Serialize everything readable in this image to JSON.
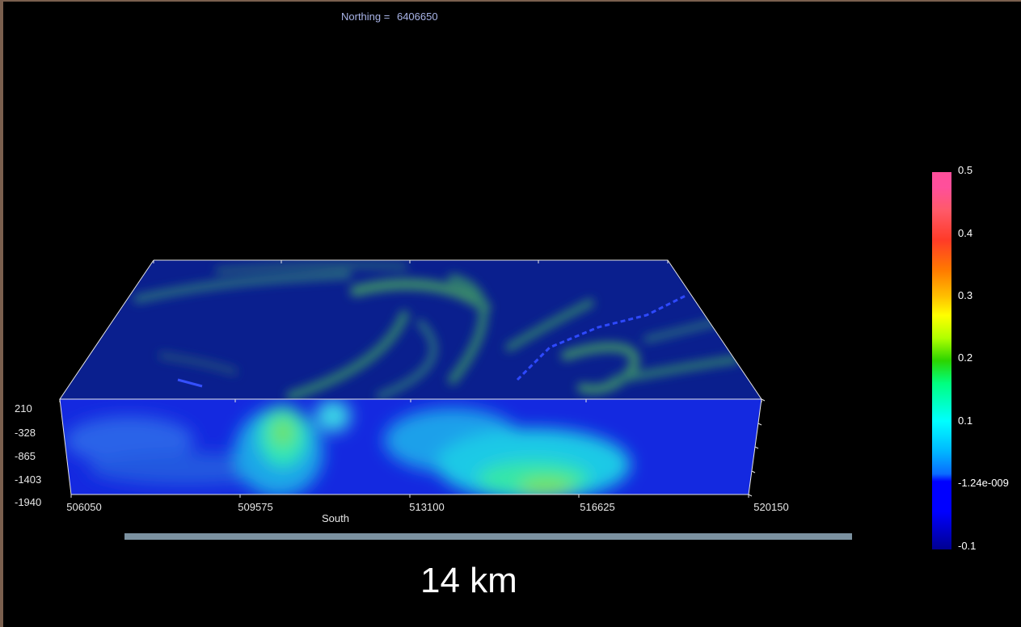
{
  "title": {
    "label": "Northing =",
    "value": "6406650"
  },
  "depth_axis": {
    "ticks": [
      "210",
      "-328",
      "-865",
      "-1403",
      "-1940"
    ]
  },
  "x_axis": {
    "ticks": [
      "506050",
      "509575",
      "513100",
      "516625",
      "520150"
    ],
    "label": "South"
  },
  "scale_bar": {
    "label": "14 km"
  },
  "colorbar": {
    "labels": [
      "0.5",
      "0.4",
      "0.3",
      "0.2",
      "0.1",
      "-1.24e-009",
      "-0.1"
    ]
  },
  "colors": {
    "background": "#000000",
    "block_top": "#0a1e8c",
    "block_face": "#1428d8",
    "scale_bar": "#7b91a0",
    "annotation": "#a9b4e8"
  }
}
